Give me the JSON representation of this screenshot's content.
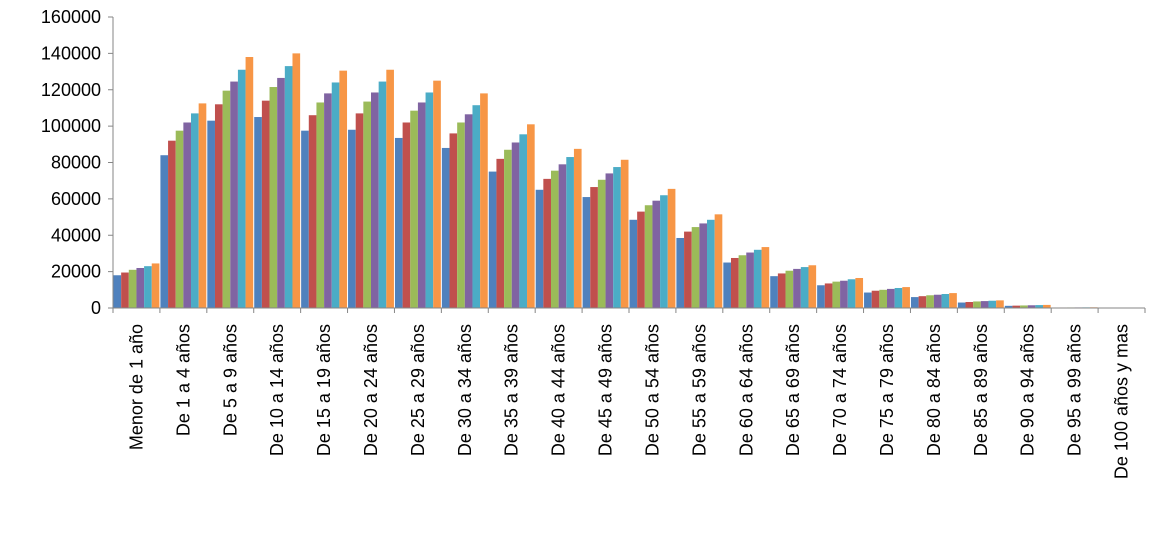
{
  "chart_data": {
    "type": "bar",
    "title": "",
    "xlabel": "",
    "ylabel": "",
    "ylim": [
      0,
      160000
    ],
    "yticks": [
      0,
      20000,
      40000,
      60000,
      80000,
      100000,
      120000,
      140000,
      160000
    ],
    "grid": false,
    "legend": "none",
    "categories": [
      "Menor de 1 año",
      "De 1 a 4 años",
      "De 5 a 9 años",
      "De 10 a 14 años",
      "De 15 a 19 años",
      "De 20 a 24 años",
      "De 25 a 29 años",
      "De 30 a 34 años",
      "De 35 a 39 años",
      "De 40 a 44 años",
      "De 45 a 49 años",
      "De 50 a 54 años",
      "De 55 a 59 años",
      "De 60 a 64 años",
      "De 65 a 69 años",
      "De 70 a 74 años",
      "De 75 a 79 años",
      "De 80 a 84 años",
      "De 85 a 89 años",
      "De 90 a 94 años",
      "De 95 a 99 años",
      "De 100 años y mas"
    ],
    "series": [
      {
        "color": "#4F81BD",
        "values": [
          18000,
          84000,
          103000,
          105000,
          97500,
          98000,
          93500,
          88000,
          75000,
          65000,
          61000,
          48500,
          38500,
          25000,
          17500,
          12500,
          8500,
          6000,
          3000,
          1200,
          250,
          40
        ]
      },
      {
        "color": "#C0504D",
        "values": [
          19500,
          92000,
          112000,
          114000,
          106000,
          107000,
          102000,
          96000,
          82000,
          71000,
          66500,
          53000,
          42000,
          27500,
          19000,
          13500,
          9500,
          6500,
          3300,
          1300,
          280,
          45
        ]
      },
      {
        "color": "#9BBB59",
        "values": [
          21000,
          97500,
          119500,
          121500,
          113000,
          113500,
          108500,
          102000,
          87000,
          75500,
          70500,
          56500,
          44500,
          29000,
          20500,
          14500,
          10000,
          7000,
          3600,
          1400,
          300,
          50
        ]
      },
      {
        "color": "#8064A2",
        "values": [
          22000,
          102000,
          124500,
          126500,
          118000,
          118500,
          113000,
          106500,
          91000,
          79000,
          74000,
          59000,
          46500,
          30500,
          21500,
          15000,
          10500,
          7300,
          3800,
          1500,
          320,
          55
        ]
      },
      {
        "color": "#4BACC6",
        "values": [
          23000,
          107000,
          131000,
          133000,
          124000,
          124500,
          118500,
          111500,
          95500,
          83000,
          77500,
          62000,
          48500,
          32000,
          22500,
          15800,
          11000,
          7700,
          4000,
          1600,
          350,
          60
        ]
      },
      {
        "color": "#F79646",
        "values": [
          24500,
          112500,
          138000,
          140000,
          130500,
          131000,
          125000,
          118000,
          101000,
          87500,
          81500,
          65500,
          51500,
          33500,
          23500,
          16500,
          11500,
          8200,
          4200,
          1700,
          380,
          65
        ]
      }
    ]
  }
}
